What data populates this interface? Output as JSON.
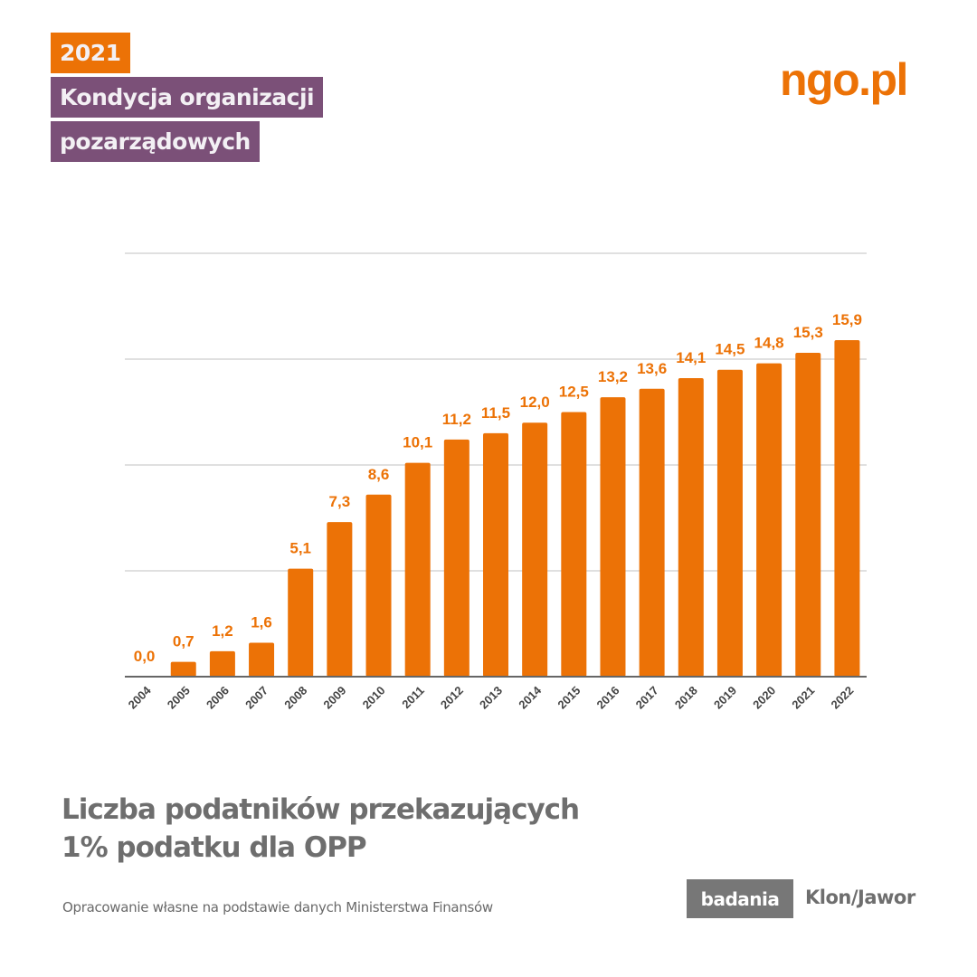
{
  "header": {
    "year_tag": "2021",
    "series_title_line1": "Kondycja organizacji",
    "series_title_line2": "pozarządowych",
    "logo": "ngo.pl"
  },
  "colors": {
    "accent_orange": "#ec7206",
    "purple": "#7b5078",
    "gray_text": "#6e6e6e",
    "badge_gray": "#777777",
    "gridline": "#e0e0e0",
    "axis": "#666666"
  },
  "chart_data": {
    "type": "bar",
    "title": "Liczba podatników przekazujących 1% podatku dla OPP",
    "xlabel": "",
    "ylabel": "",
    "categories": [
      "2004",
      "2005",
      "2006",
      "2007",
      "2008",
      "2009",
      "2010",
      "2011",
      "2012",
      "2013",
      "2014",
      "2015",
      "2016",
      "2017",
      "2018",
      "2019",
      "2020",
      "2021",
      "2022"
    ],
    "values": [
      0.0,
      0.7,
      1.2,
      1.6,
      5.1,
      7.3,
      8.6,
      10.1,
      11.2,
      11.5,
      12.0,
      12.5,
      13.2,
      13.6,
      14.1,
      14.5,
      14.8,
      15.3,
      15.9
    ],
    "data_labels": [
      "0,0",
      "0,7",
      "1,2",
      "1,6",
      "5,1",
      "7,3",
      "8,6",
      "10,1",
      "11,2",
      "11,5",
      "12,0",
      "12,5",
      "13,2",
      "13,6",
      "14,1",
      "14,5",
      "14,8",
      "15,3",
      "15,9"
    ],
    "ylim": [
      0,
      20
    ],
    "gridlines": [
      0,
      5,
      10,
      15,
      20
    ],
    "y_tick_labels_visible": false,
    "grid": true,
    "legend": "none",
    "x_tick_rotation_deg": -45
  },
  "footer": {
    "title_line1": "Liczba podatników przekazujących",
    "title_line2": "1% podatku dla OPP",
    "source": "Opracowanie własne na podstawie danych Ministerstwa Finansów",
    "badge": "badania",
    "org": "Klon/Jawor"
  }
}
